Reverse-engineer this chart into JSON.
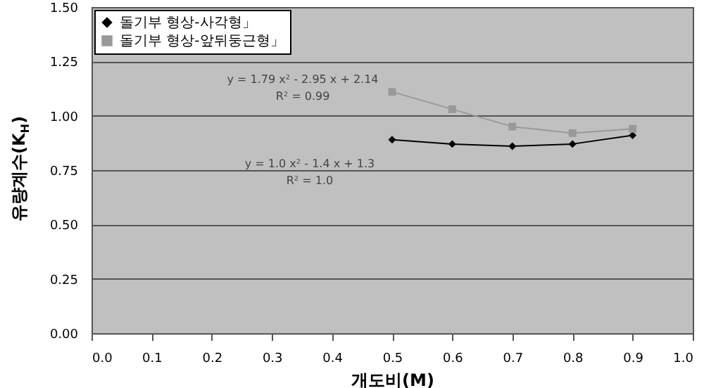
{
  "chart_data": {
    "type": "line",
    "xlabel": "개도비(M)",
    "ylabel": "유량계수(K$_{H}$)",
    "xlim": [
      0,
      1
    ],
    "ylim": [
      0,
      1.5
    ],
    "xticks": [
      {
        "value": 0,
        "label": "0.0"
      },
      {
        "value": 0.1,
        "label": "0.1"
      },
      {
        "value": 0.2,
        "label": "0.2"
      },
      {
        "value": 0.3,
        "label": "0.3"
      },
      {
        "value": 0.4,
        "label": "0.4"
      },
      {
        "value": 0.5,
        "label": "0.5"
      },
      {
        "value": 0.6,
        "label": "0.6"
      },
      {
        "value": 0.7,
        "label": "0.7"
      },
      {
        "value": 0.8,
        "label": "0.8"
      },
      {
        "value": 0.9,
        "label": "0.9"
      },
      {
        "value": 1,
        "label": "1.0"
      }
    ],
    "yticks": [
      {
        "value": 0,
        "label": "0.00"
      },
      {
        "value": 0.25,
        "label": "0.25"
      },
      {
        "value": 0.5,
        "label": "0.50"
      },
      {
        "value": 0.75,
        "label": "0.75"
      },
      {
        "value": 1,
        "label": "1.00"
      },
      {
        "value": 1.25,
        "label": "1.25"
      },
      {
        "value": 1.5,
        "label": "1.50"
      }
    ],
    "x": [
      0.5,
      0.6,
      0.7,
      0.8,
      0.9
    ],
    "series": [
      {
        "name": "돌기부 형상-사각형」",
        "color": "#000000",
        "marker": "diamond",
        "values": [
          0.89,
          0.87,
          0.86,
          0.87,
          0.91
        ]
      },
      {
        "name": "돌기부 형상-앞뒤둥근형」",
        "color": "#999999",
        "marker": "square",
        "values": [
          1.11,
          1.03,
          0.95,
          0.92,
          0.94
        ]
      }
    ],
    "annotations": [
      "y = 1.79 x² - 2.95 x + 2.14",
      "R² = 0.99",
      "y = 1.0 x² - 1.4 x + 1.3",
      "R² = 1.0"
    ],
    "grid": "y",
    "legend": "top left"
  }
}
